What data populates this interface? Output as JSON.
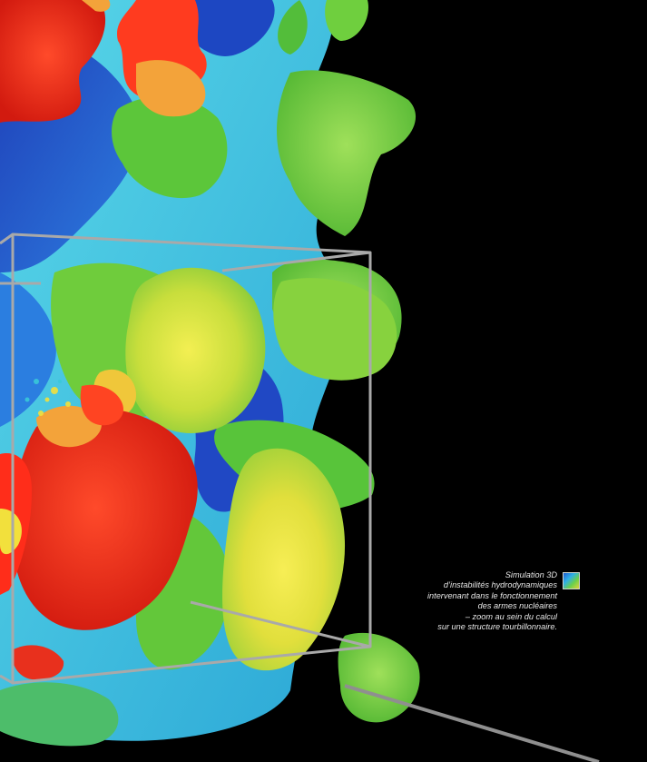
{
  "image": {
    "subject": "3D simulation render of hydrodynamic instabilities with a wireframe zoom box",
    "palette": [
      "#ff2a1a",
      "#f3a33a",
      "#f2e03c",
      "#78cf3c",
      "#39c9d9",
      "#1c59d6",
      "#000000"
    ]
  },
  "caption": {
    "lines": [
      "Simulation 3D",
      "d’instabilités hydrodynamiques",
      "intervenant dans le fonctionnement",
      "des armes nucléaires",
      "– zoom au sein du calcul",
      "sur une structure tourbillonnaire."
    ],
    "thumbnail_icon": "simulation-thumbnail-icon"
  }
}
